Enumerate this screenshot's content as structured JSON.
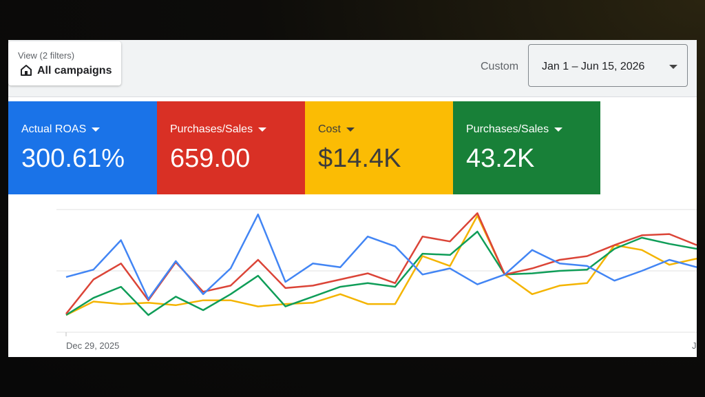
{
  "header": {
    "view_label": "View (2 filters)",
    "view_value": "All campaigns",
    "view_icon": "home-icon",
    "custom_label": "Custom",
    "date_range": "Jan 1 – Jun 15, 2026"
  },
  "tiles": [
    {
      "label": "Actual ROAS",
      "value": "300.61%",
      "color": "#1a73e8"
    },
    {
      "label": "Purchases/Sales",
      "value": "659.00",
      "color": "#d93025"
    },
    {
      "label": "Cost",
      "value": "$14.4K",
      "color": "#fbbc04"
    },
    {
      "label": "Purchases/Sales",
      "value": "43.2K",
      "color": "#188038"
    }
  ],
  "chart_data": {
    "type": "line",
    "x_start_label": "Dec 29, 2025",
    "x_end_label": "J",
    "grid": true,
    "ylim": [
      0,
      100
    ],
    "series": [
      {
        "color": "#4285f4",
        "values": [
          45,
          51,
          75,
          27,
          58,
          31,
          52,
          96,
          41,
          56,
          53,
          78,
          70,
          47,
          52,
          39,
          47,
          67,
          56,
          54,
          42,
          50,
          59,
          53
        ]
      },
      {
        "color": "#db4437",
        "values": [
          15,
          43,
          56,
          26,
          57,
          33,
          38,
          59,
          36,
          38,
          43,
          48,
          40,
          78,
          74,
          97,
          47,
          52,
          59,
          62,
          71,
          79,
          80,
          71
        ]
      },
      {
        "color": "#0f9d58",
        "values": [
          14,
          28,
          37,
          14,
          29,
          18,
          31,
          46,
          21,
          29,
          37,
          40,
          37,
          64,
          63,
          82,
          47,
          48,
          50,
          51,
          68,
          77,
          72,
          68
        ]
      },
      {
        "color": "#f4b400",
        "values": [
          14,
          25,
          23,
          24,
          22,
          26,
          26,
          21,
          23,
          24,
          31,
          23,
          23,
          62,
          54,
          95,
          47,
          31,
          38,
          40,
          71,
          67,
          55,
          60
        ]
      }
    ]
  }
}
